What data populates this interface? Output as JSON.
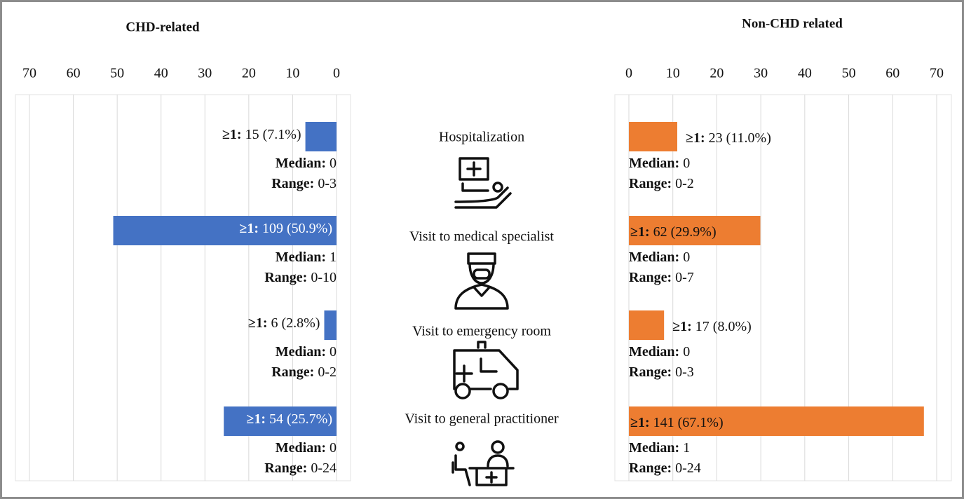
{
  "categories": [
    "Hospitalization",
    "Visit to medical specialist",
    "Visit to emergency room",
    "Visit to general practitioner"
  ],
  "value_label_prefix": "≥1:",
  "median_prefix": "Median:",
  "range_prefix": "Range:",
  "chart_data": [
    {
      "type": "bar",
      "title": "CHD-related",
      "color": "#4472c4",
      "x_reversed": true,
      "values": [
        7.1,
        50.9,
        2.8,
        25.7
      ],
      "value_labels": [
        "15 (7.1%)",
        "109 (50.9%)",
        "6 (2.8%)",
        "54 (25.7%)"
      ],
      "medians": [
        0,
        1,
        0,
        0
      ],
      "ranges": [
        "0-3",
        "0-10",
        "0-2",
        "0-24"
      ],
      "xlim": [
        0,
        70
      ],
      "xticks": [
        0,
        10,
        20,
        30,
        40,
        50,
        60,
        70
      ],
      "grid": true
    },
    {
      "type": "bar",
      "title": "Non-CHD related",
      "color": "#ed7d31",
      "x_reversed": false,
      "values": [
        11.0,
        29.9,
        8.0,
        67.1
      ],
      "value_labels": [
        "23 (11.0%)",
        "62 (29.9%)",
        "17 (8.0%)",
        "141 (67.1%)"
      ],
      "medians": [
        0,
        0,
        0,
        1
      ],
      "ranges": [
        "0-2",
        "0-7",
        "0-3",
        "0-24"
      ],
      "xlim": [
        0,
        70
      ],
      "xticks": [
        0,
        10,
        20,
        30,
        40,
        50,
        60,
        70
      ],
      "grid": true
    }
  ]
}
